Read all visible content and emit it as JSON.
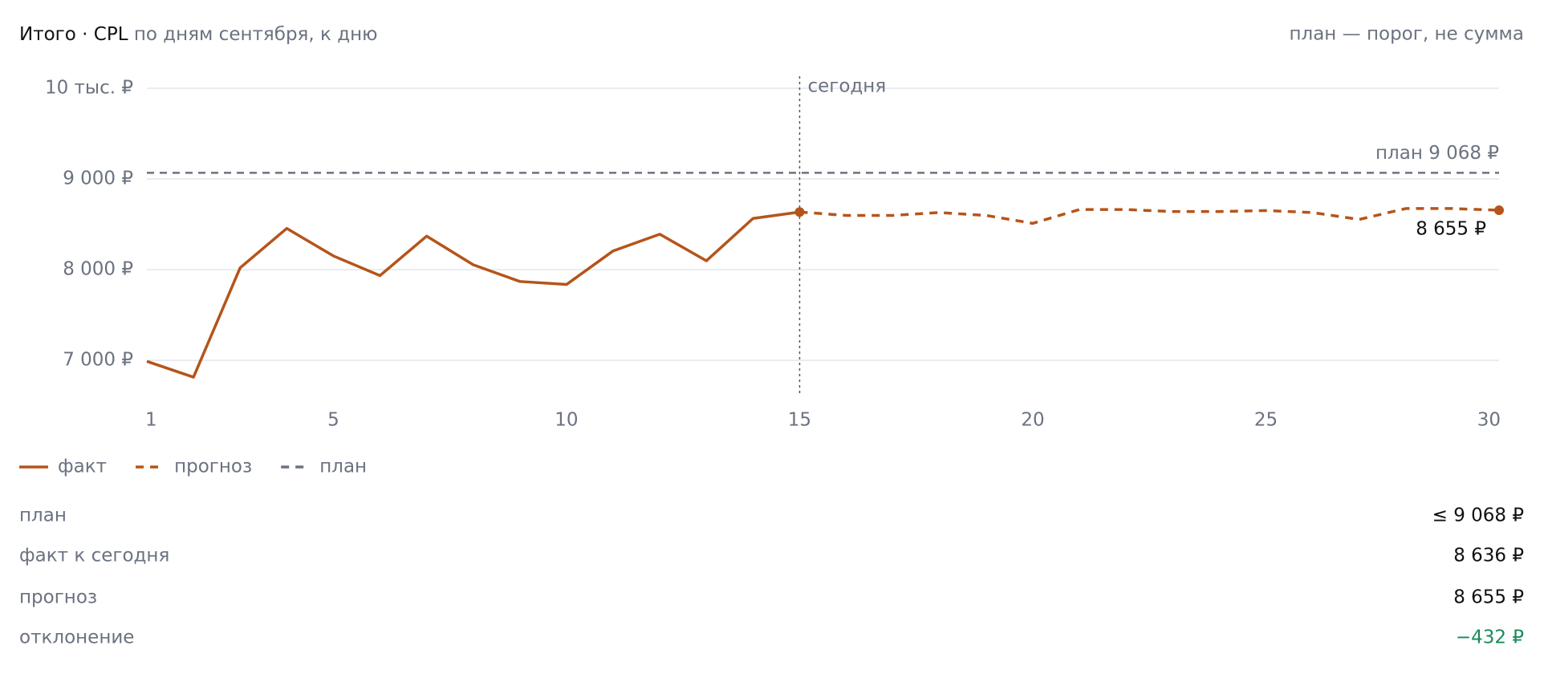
{
  "chart_data": {
    "type": "line",
    "title": "Итого · CPL",
    "subtitle": "по дням сентября, к дню",
    "note": "план — порог, не сумма",
    "x": [
      1,
      2,
      3,
      4,
      5,
      6,
      7,
      8,
      9,
      10,
      11,
      12,
      13,
      14,
      15,
      16,
      17,
      18,
      19,
      20,
      21,
      22,
      23,
      24,
      25,
      26,
      27,
      28,
      29,
      30
    ],
    "xlim": [
      1,
      30
    ],
    "xticks": [
      1,
      5,
      10,
      15,
      20,
      25,
      30
    ],
    "ylim": [
      6630,
      10000
    ],
    "yticks": [
      {
        "value": 7000,
        "label": "7 000 ₽"
      },
      {
        "value": 8000,
        "label": "8 000 ₽"
      },
      {
        "value": 9000,
        "label": "9 000 ₽"
      },
      {
        "value": 10000,
        "label": "10 тыс. ₽"
      }
    ],
    "grid": true,
    "series": [
      {
        "name": "факт",
        "color": "#b5541a",
        "style": "solid",
        "values": [
          6990,
          6815,
          8020,
          8455,
          8152,
          7935,
          8370,
          8054,
          7870,
          7837,
          8207,
          8391,
          8098,
          8565,
          8636,
          null,
          null,
          null,
          null,
          null,
          null,
          null,
          null,
          null,
          null,
          null,
          null,
          null,
          null,
          null
        ]
      },
      {
        "name": "прогноз",
        "color": "#b5541a",
        "style": "dashed",
        "values": [
          null,
          null,
          null,
          null,
          null,
          null,
          null,
          null,
          null,
          null,
          null,
          null,
          null,
          null,
          8636,
          8598,
          8598,
          8630,
          8598,
          8511,
          8663,
          8663,
          8641,
          8641,
          8652,
          8630,
          8554,
          8674,
          8674,
          8655
        ],
        "value_labels": [
          null,
          null,
          null,
          null,
          null,
          null,
          null,
          null,
          null,
          null,
          null,
          null,
          null,
          null,
          null,
          null,
          null,
          null,
          null,
          null,
          null,
          null,
          null,
          null,
          null,
          null,
          null,
          null,
          null,
          "8 655 ₽"
        ]
      }
    ],
    "plan": {
      "name": "план",
      "value": 9068,
      "label": "план 9 068 ₽",
      "color": "#6b7280"
    },
    "today": {
      "x": 15,
      "label": "сегодня"
    },
    "summary": [
      [
        "план",
        "≤ 9 068 ₽"
      ],
      [
        "факт к сегодня",
        "8 636 ₽"
      ],
      [
        "прогноз",
        "8 655 ₽"
      ],
      [
        "отклонение",
        "−432 ₽"
      ]
    ]
  }
}
